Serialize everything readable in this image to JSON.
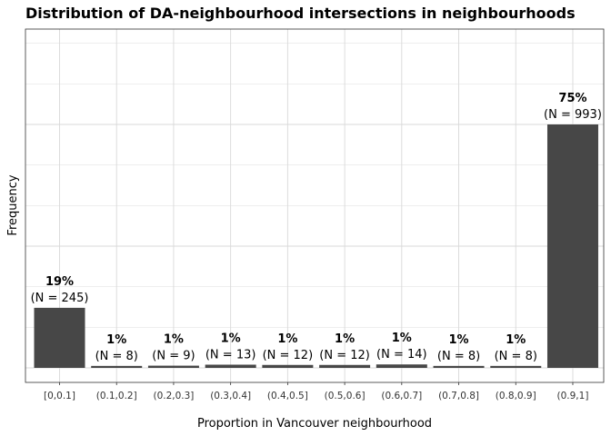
{
  "chart_data": {
    "type": "bar",
    "title": "Distribution of DA-neighbourhood intersections in neighbourhoods",
    "xlabel": "Proportion in Vancouver neighbourhood",
    "ylabel": "Frequency",
    "categories": [
      "[0,0.1]",
      "(0.1,0.2]",
      "(0.2,0.3]",
      "(0.3,0.4]",
      "(0.4,0.5]",
      "(0.5,0.6]",
      "(0.6,0.7]",
      "(0.7,0.8]",
      "(0.8,0.9]",
      "(0.9,1]"
    ],
    "values": [
      245,
      8,
      9,
      13,
      12,
      12,
      14,
      8,
      8,
      993
    ],
    "percent_labels": [
      "19%",
      "1%",
      "1%",
      "1%",
      "1%",
      "1%",
      "1%",
      "1%",
      "1%",
      "75%"
    ],
    "count_labels": [
      "(N = 245)",
      "(N = 8)",
      "(N = 9)",
      "(N = 13)",
      "(N = 12)",
      "(N = 12)",
      "(N = 14)",
      "(N = 8)",
      "(N = 8)",
      "(N = 993)"
    ],
    "ylim": [
      0,
      1059
    ],
    "grid": true,
    "bar_color": "#474747",
    "grid_color": "#d9d9d9",
    "panel_border_color": "#333333"
  }
}
